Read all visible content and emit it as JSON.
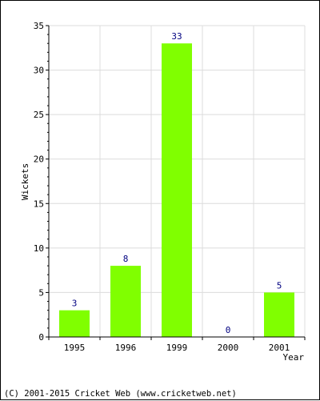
{
  "chart_data": {
    "type": "bar",
    "categories": [
      "1995",
      "1996",
      "1999",
      "2000",
      "2001"
    ],
    "values": [
      3,
      8,
      33,
      0,
      5
    ],
    "data_labels": [
      "3",
      "8",
      "33",
      "0",
      "5"
    ],
    "xlabel": "Year",
    "ylabel": "Wickets",
    "ylim": [
      0,
      35
    ],
    "yticks": [
      0,
      5,
      10,
      15,
      20,
      25,
      30,
      35
    ],
    "grid": true,
    "bar_color": "#80ff00",
    "label_color": "#000080"
  },
  "footer": {
    "copyright": "(C) 2001-2015 Cricket Web (www.cricketweb.net)"
  }
}
